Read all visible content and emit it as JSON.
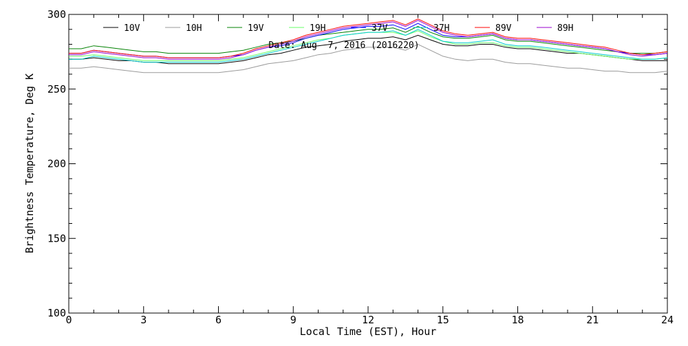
{
  "chart_data": {
    "type": "line",
    "title": "",
    "subtitle": "Date: Aug  7, 2016 (2016220)",
    "xlabel": "Local Time (EST), Hour",
    "ylabel": "Brightness Temperature, Deg K",
    "xlim": [
      0,
      24
    ],
    "ylim": [
      100,
      300
    ],
    "xticks": [
      0,
      3,
      6,
      9,
      12,
      15,
      18,
      21,
      24
    ],
    "yticks": [
      100,
      150,
      200,
      250,
      300
    ],
    "grid": false,
    "legend_position": "top",
    "x": [
      0,
      0.5,
      1,
      1.5,
      2,
      2.5,
      3,
      3.5,
      4,
      4.5,
      5,
      5.5,
      6,
      6.5,
      7,
      7.5,
      8,
      8.5,
      9,
      9.5,
      10,
      10.5,
      11,
      11.5,
      12,
      12.5,
      13,
      13.5,
      14,
      14.5,
      15,
      15.5,
      16,
      16.5,
      17,
      17.5,
      18,
      18.5,
      19,
      19.5,
      20,
      20.5,
      21,
      21.5,
      22,
      22.5,
      23,
      23.5,
      24
    ],
    "series": [
      {
        "name": "10V",
        "color": "#000000",
        "values": [
          270,
          270,
          271,
          270,
          269,
          269,
          268,
          268,
          267,
          267,
          267,
          267,
          267,
          268,
          269,
          271,
          273,
          274,
          276,
          278,
          279,
          280,
          282,
          283,
          284,
          284,
          285,
          283,
          286,
          283,
          280,
          279,
          279,
          280,
          280,
          278,
          277,
          277,
          276,
          275,
          274,
          274,
          273,
          272,
          271,
          270,
          269,
          269,
          269
        ]
      },
      {
        "name": "10H",
        "color": "#999999",
        "values": [
          264,
          264,
          265,
          264,
          263,
          262,
          261,
          261,
          261,
          261,
          261,
          261,
          261,
          262,
          263,
          265,
          267,
          268,
          269,
          271,
          273,
          274,
          276,
          277,
          278,
          278,
          278,
          276,
          280,
          276,
          272,
          270,
          269,
          270,
          270,
          268,
          267,
          267,
          266,
          265,
          264,
          264,
          263,
          262,
          262,
          261,
          261,
          261,
          262
        ]
      },
      {
        "name": "19V",
        "color": "#008000",
        "values": [
          277,
          277,
          279,
          278,
          277,
          276,
          275,
          275,
          274,
          274,
          274,
          274,
          274,
          275,
          276,
          278,
          280,
          281,
          282,
          284,
          286,
          287,
          288,
          289,
          290,
          290,
          291,
          288,
          292,
          288,
          285,
          284,
          284,
          285,
          286,
          283,
          282,
          282,
          281,
          280,
          279,
          278,
          277,
          276,
          275,
          274,
          274,
          274,
          275
        ]
      },
      {
        "name": "19H",
        "color": "#66ff66",
        "values": [
          272,
          272,
          273,
          272,
          271,
          270,
          269,
          269,
          269,
          269,
          269,
          269,
          269,
          270,
          271,
          273,
          275,
          277,
          279,
          281,
          283,
          284,
          286,
          287,
          288,
          288,
          288,
          286,
          289,
          285,
          282,
          280,
          280,
          281,
          281,
          279,
          278,
          278,
          277,
          276,
          275,
          274,
          273,
          272,
          271,
          270,
          270,
          270,
          271
        ]
      },
      {
        "name": "37V",
        "color": "#0000ff",
        "values": [
          274,
          274,
          276,
          275,
          274,
          273,
          272,
          272,
          271,
          271,
          271,
          271,
          271,
          272,
          273,
          276,
          278,
          279,
          281,
          284,
          286,
          288,
          290,
          291,
          292,
          292,
          293,
          290,
          294,
          290,
          286,
          285,
          285,
          286,
          287,
          284,
          283,
          283,
          282,
          281,
          280,
          279,
          278,
          277,
          275,
          274,
          273,
          273,
          274
        ]
      },
      {
        "name": "37H",
        "color": "#00cccc",
        "values": [
          270,
          270,
          272,
          271,
          270,
          269,
          268,
          268,
          268,
          268,
          268,
          268,
          268,
          269,
          270,
          272,
          274,
          276,
          278,
          280,
          282,
          284,
          286,
          287,
          288,
          288,
          289,
          286,
          290,
          286,
          282,
          281,
          281,
          282,
          283,
          280,
          279,
          279,
          278,
          277,
          276,
          275,
          274,
          273,
          272,
          271,
          270,
          270,
          271
        ]
      },
      {
        "name": "89V",
        "color": "#ff0000",
        "values": [
          274,
          274,
          276,
          275,
          274,
          273,
          272,
          272,
          271,
          271,
          271,
          271,
          271,
          272,
          274,
          277,
          279,
          281,
          283,
          286,
          288,
          290,
          292,
          293,
          294,
          295,
          296,
          293,
          297,
          293,
          289,
          287,
          286,
          287,
          288,
          285,
          284,
          284,
          283,
          282,
          281,
          280,
          279,
          278,
          276,
          274,
          273,
          274,
          275
        ]
      },
      {
        "name": "89H",
        "color": "#9900cc",
        "values": [
          273,
          273,
          275,
          274,
          273,
          272,
          271,
          271,
          270,
          270,
          270,
          270,
          270,
          271,
          273,
          276,
          278,
          280,
          282,
          285,
          287,
          289,
          291,
          292,
          293,
          294,
          295,
          292,
          296,
          292,
          288,
          286,
          285,
          286,
          287,
          284,
          283,
          283,
          282,
          281,
          280,
          279,
          278,
          277,
          275,
          273,
          272,
          273,
          274
        ]
      }
    ]
  }
}
